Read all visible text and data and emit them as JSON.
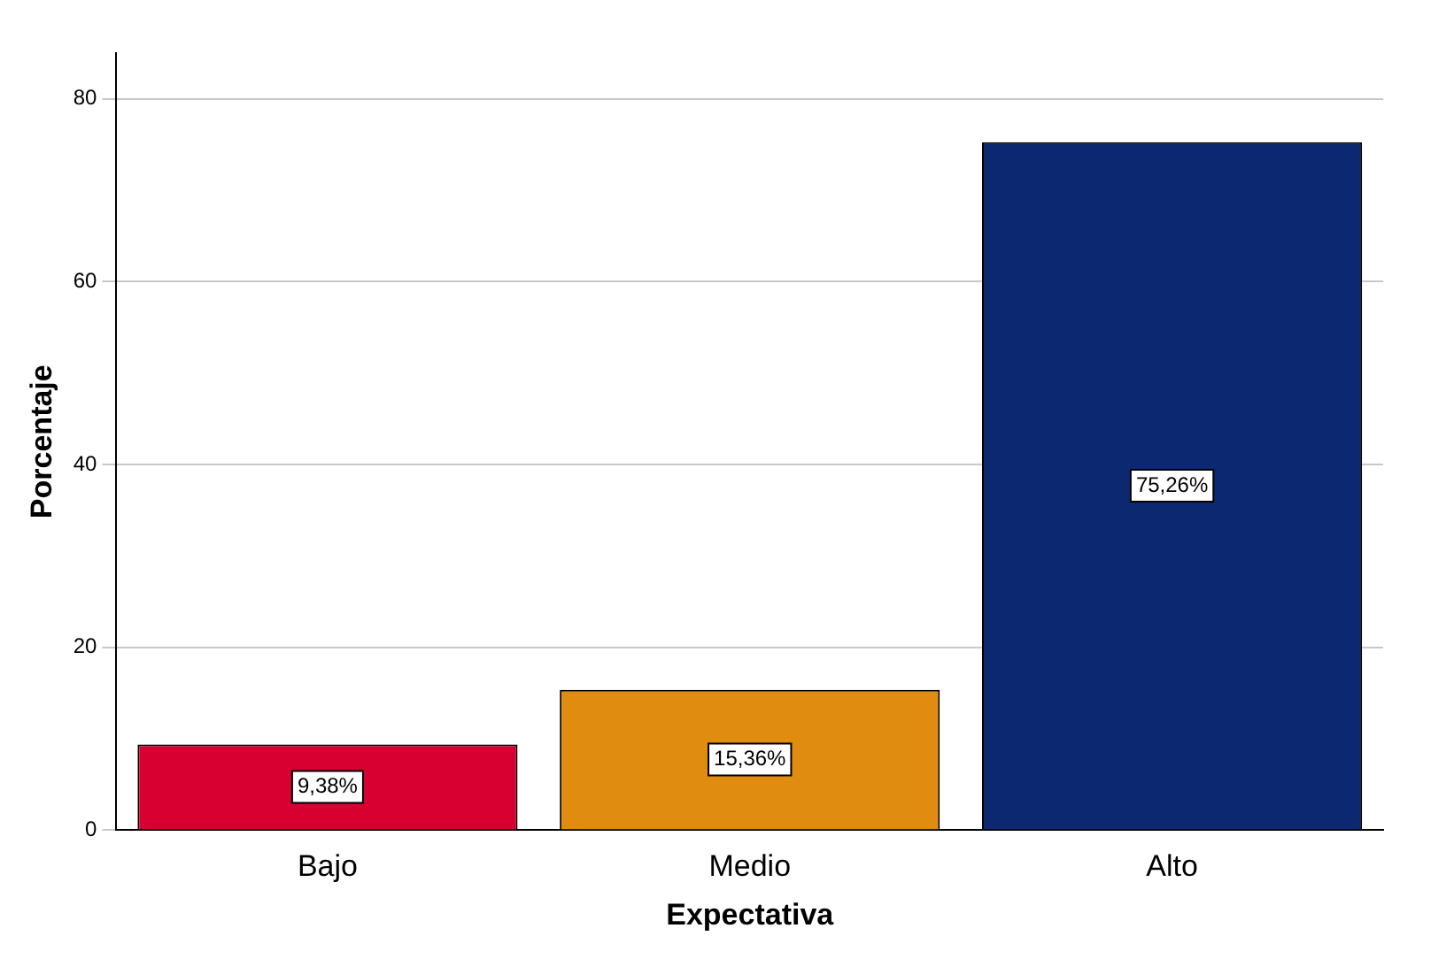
{
  "chart_data": {
    "type": "bar",
    "xlabel": "Expectativa",
    "ylabel": "Porcentaje",
    "categories": [
      "Bajo",
      "Medio",
      "Alto"
    ],
    "values": [
      9.38,
      15.36,
      75.26
    ],
    "colors": [
      "#d70030",
      "#e08c10",
      "#0b2870"
    ],
    "value_labels": [
      "9,38%",
      "15,36%",
      "75,26%"
    ],
    "ylim": [
      0,
      85
    ],
    "yticks": [
      0,
      20,
      40,
      60,
      80
    ],
    "grid": "y",
    "legend": false
  }
}
